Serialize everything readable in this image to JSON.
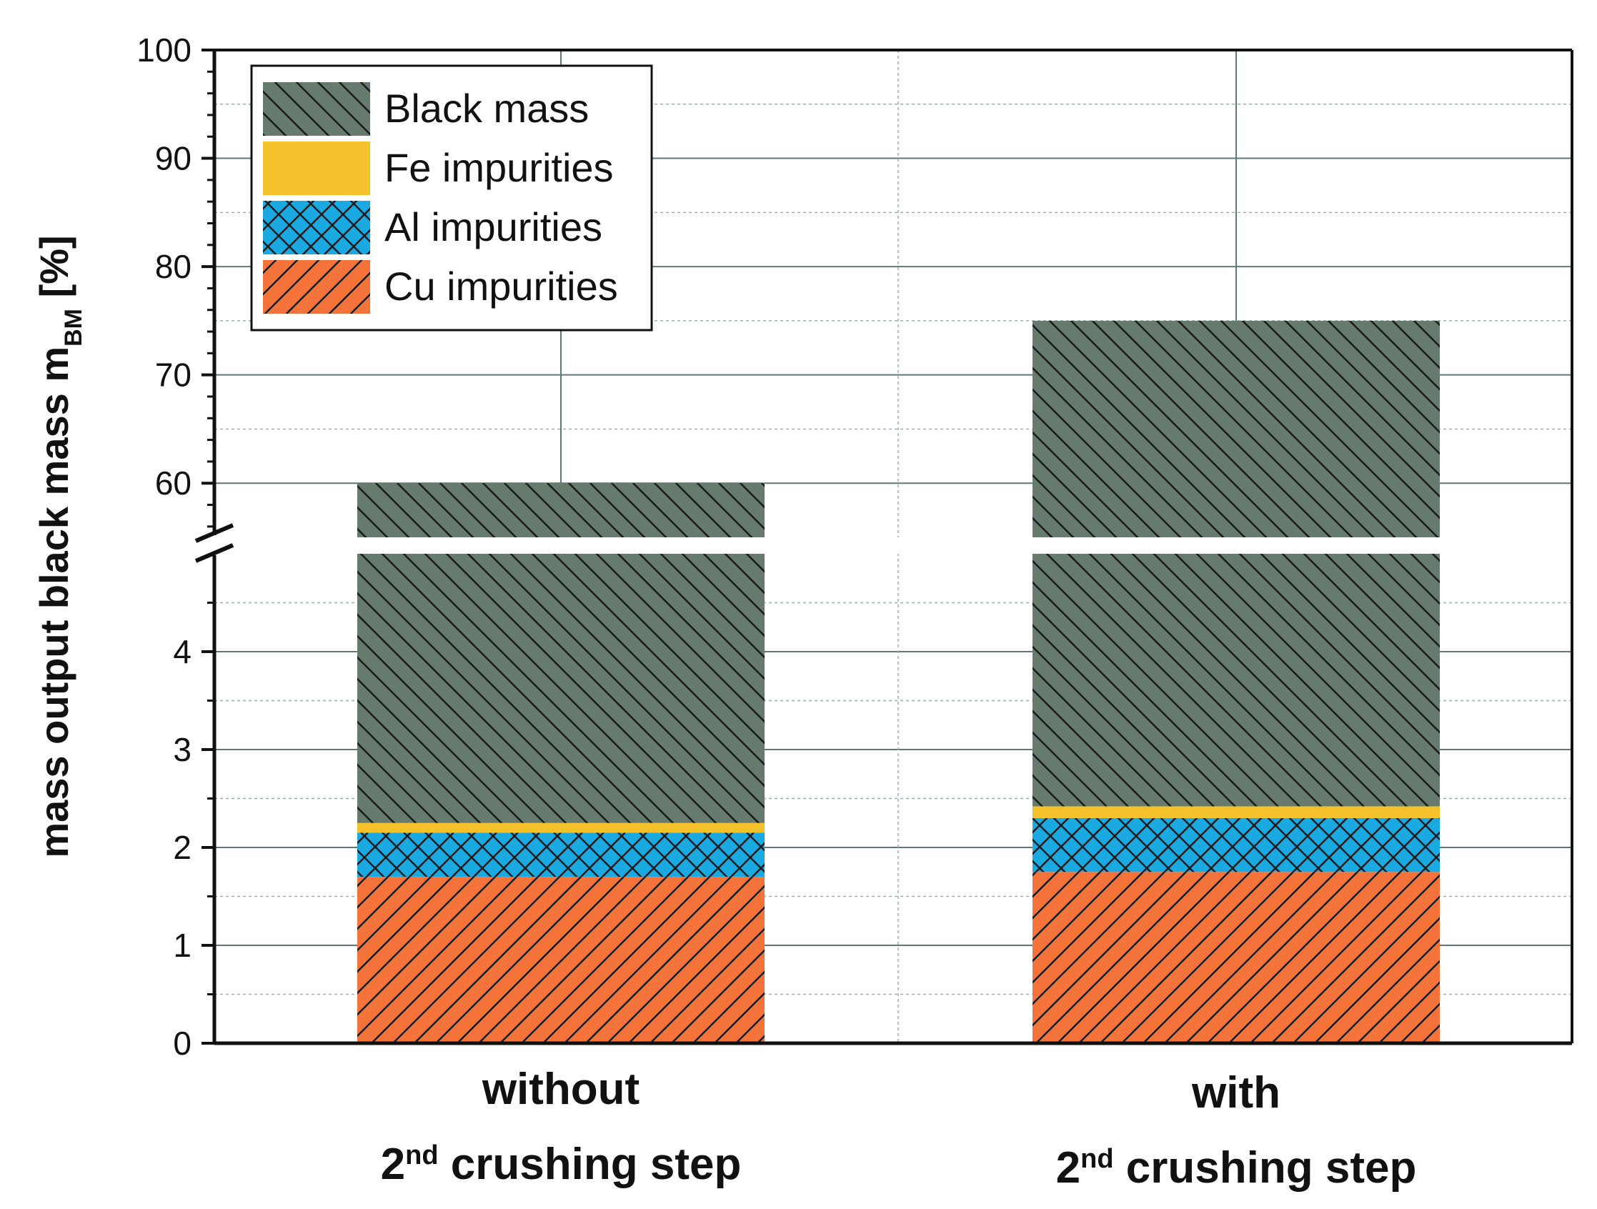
{
  "chart_data": {
    "type": "bar",
    "stacked": true,
    "broken_axis": true,
    "ylabel": "mass output black mass m",
    "ylabel_subscript": "BM",
    "ylabel_unit": "[%]",
    "categories": [
      {
        "line1": "without",
        "line2_prefix": "2",
        "line2_sup": "nd",
        "line2_suffix": " crushing step"
      },
      {
        "line1": "with",
        "line2_prefix": "2",
        "line2_sup": "nd",
        "line2_suffix": " crushing step"
      }
    ],
    "series": [
      {
        "name": "Cu impurities",
        "values": [
          1.7,
          1.75
        ],
        "color": "#f4733a",
        "pattern": "hatch-forward"
      },
      {
        "name": "Al impurities",
        "values": [
          0.45,
          0.55
        ],
        "color": "#1aa9e0",
        "pattern": "crosshatch"
      },
      {
        "name": "Fe impurities",
        "values": [
          0.1,
          0.12
        ],
        "color": "#f5c12b",
        "pattern": "none"
      },
      {
        "name": "Black mass",
        "values": [
          57.75,
          72.58
        ],
        "color": "#667a6e",
        "pattern": "hatch-back"
      }
    ],
    "totals": [
      60,
      75
    ],
    "lower_axis": {
      "ylim": [
        0,
        5
      ],
      "ticks": [
        "0",
        "1",
        "2",
        "3",
        "4"
      ],
      "tick_values": [
        0,
        1,
        2,
        3,
        4
      ]
    },
    "upper_axis": {
      "ylim": [
        55,
        100
      ],
      "ticks": [
        "60",
        "70",
        "80",
        "90",
        "100"
      ],
      "tick_values": [
        60,
        70,
        80,
        90,
        100
      ]
    },
    "legend": {
      "placement": "top-left",
      "entries": [
        "Black mass",
        "Fe impurities",
        "Al impurities",
        "Cu impurities"
      ]
    },
    "grid": true
  }
}
